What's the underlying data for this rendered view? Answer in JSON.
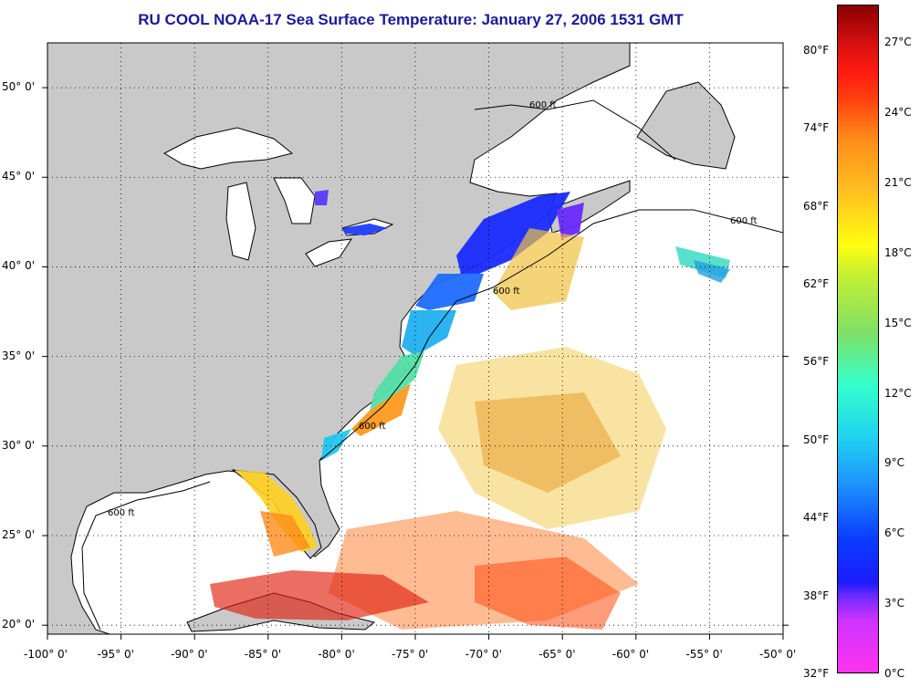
{
  "title": "RU COOL  NOAA-17  Sea Surface Temperature:  January 27, 2006 1531 GMT",
  "colors": {
    "land": "#c9c9c9",
    "ocean_nodata": "#ffffff",
    "title": "#1a1a9a"
  },
  "map": {
    "lon_range": [
      -100,
      -50
    ],
    "lat_range": [
      19.5,
      52.5
    ],
    "lon_ticks": [
      "-100° 0'",
      "-95° 0'",
      "-90° 0'",
      "-85° 0'",
      "-80° 0'",
      "-75° 0'",
      "-70° 0'",
      "-65° 0'",
      "-60° 0'",
      "-55° 0'",
      "-50° 0'"
    ],
    "lat_ticks": [
      "20° 0'",
      "25° 0'",
      "30° 0'",
      "35° 0'",
      "40° 0'",
      "45° 0'",
      "50° 0'"
    ],
    "isobath_label": "600 ft",
    "grid": true
  },
  "colorbar": {
    "f_labels": [
      "32°F",
      "38°F",
      "44°F",
      "50°F",
      "56°F",
      "62°F",
      "68°F",
      "74°F",
      "80°F"
    ],
    "c_labels": [
      "0°C",
      "3°C",
      "6°C",
      "9°C",
      "12°C",
      "15°C",
      "18°C",
      "21°C",
      "24°C",
      "27°C"
    ],
    "range_c": [
      0,
      28.5
    ]
  }
}
